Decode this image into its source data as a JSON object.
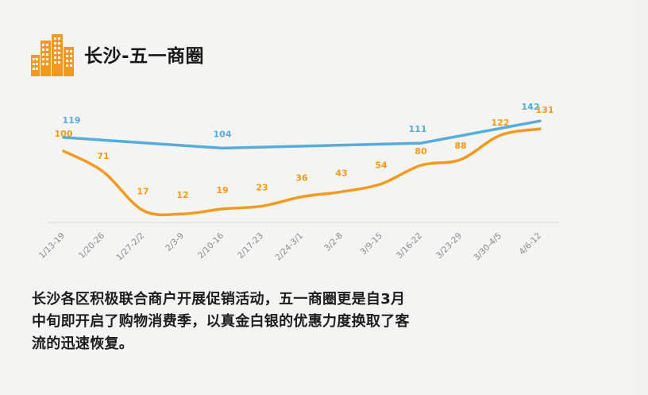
{
  "header": {
    "title": "长沙-五一商圈",
    "icon": "city-buildings-icon"
  },
  "colors": {
    "blue": "#56acdb",
    "orange": "#f29a1e",
    "axis": "#dcdcdc",
    "icon": "#f29a1e"
  },
  "chart_data": {
    "type": "line",
    "categories": [
      "1/13-19",
      "1/20-26",
      "1/27-2/2",
      "2/3-9",
      "2/10-16",
      "2/17-23",
      "2/24-3/1",
      "3/2-8",
      "3/9-15",
      "3/16-22",
      "3/23-29",
      "3/30-4/5",
      "4/6-12"
    ],
    "series": [
      {
        "color": "#56acdb",
        "values": [
          119,
          null,
          null,
          null,
          104,
          null,
          null,
          null,
          null,
          111,
          null,
          null,
          142
        ],
        "labels": [
          "119",
          "",
          "",
          "",
          "104",
          "",
          "",
          "",
          "",
          "111",
          "",
          "",
          "142"
        ]
      },
      {
        "color": "#f29a1e",
        "values": [
          100,
          71,
          17,
          12,
          19,
          23,
          36,
          43,
          54,
          80,
          88,
          122,
          131
        ],
        "labels": [
          "100",
          "71",
          "17",
          "12",
          "19",
          "23",
          "36",
          "43",
          "54",
          "80",
          "88",
          "122",
          "131"
        ]
      }
    ],
    "legend": "none",
    "grid": false
  },
  "caption": {
    "lines": [
      "长沙各区积极联合商户开展促销活动，五一商圈更是自3月",
      "中旬即开启了购物消费季，以真金白银的优惠力度换取了客",
      "流的迅速恢复。"
    ]
  }
}
